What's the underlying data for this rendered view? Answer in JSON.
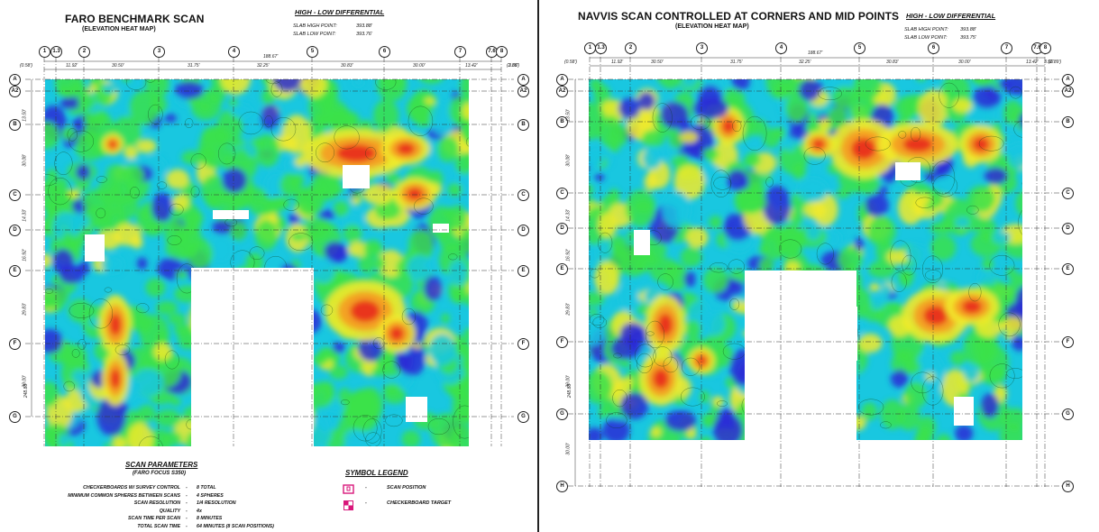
{
  "left": {
    "title": "FARO BENCHMARK SCAN",
    "subtitle": "(ELEVATION HEAT MAP)",
    "differential": {
      "heading": "HIGH - LOW DIFFERENTIAL",
      "high_label": "SLAB HIGH POINT:",
      "high_value": "393.88'",
      "low_label": "SLAB LOW POINT:",
      "low_value": "393.76'"
    },
    "grid_columns": [
      "1",
      "1.3",
      "2",
      "3",
      "4",
      "5",
      "6",
      "7",
      "7.6",
      "8"
    ],
    "grid_rows": [
      "A",
      "A2",
      "B",
      "C",
      "D",
      "E",
      "F",
      "G"
    ],
    "top_dims": [
      "(0.58')",
      "11.92'",
      "30.50'",
      "31.75'",
      "32.25'",
      "30.83'",
      "30.00'",
      "13.42'",
      "3.56'",
      "(2.89')"
    ],
    "overall_dim": "188.67'",
    "side_dims": [
      "13.50'",
      "30.08'",
      "14.33'",
      "16.92'",
      "29.83'",
      "30.00'",
      "248.83'"
    ],
    "scan_parameters": {
      "heading": "SCAN PARAMETERS",
      "subheading": "(FARO FOCUS S350)",
      "rows": [
        {
          "label": "CHECKERBOARDS W/ SURVEY CONTROL",
          "value": "8 TOTAL"
        },
        {
          "label": "MINIMUM COMMON SPHERES BETWEEN SCANS",
          "value": "4 SPHERES"
        },
        {
          "label": "SCAN RESOLUTION",
          "value": "1/4 RESOLUTION"
        },
        {
          "label": "QUALITY",
          "value": "4x"
        },
        {
          "label": "SCAN TIME PER SCAN",
          "value": "8 MINUTES"
        },
        {
          "label": "TOTAL SCAN TIME",
          "value": "64 MINUTES (8 SCAN POSITIONS)"
        }
      ]
    },
    "symbol_legend": {
      "heading": "SYMBOL LEGEND",
      "items": [
        {
          "icon": "scan-position-icon",
          "label": "SCAN POSITION"
        },
        {
          "icon": "checkerboard-target-icon",
          "label": "CHECKERBOARD TARGET"
        }
      ]
    }
  },
  "right": {
    "title": "NAVVIS SCAN CONTROLLED AT CORNERS AND MID POINTS",
    "subtitle": "(ELEVATION HEAT MAP)",
    "differential": {
      "heading": "HIGH - LOW DIFFERENTIAL",
      "high_label": "SLAB HIGH POINT:",
      "high_value": "393.88'",
      "low_label": "SLAB LOW POINT:",
      "low_value": "393.75'"
    },
    "grid_columns": [
      "1",
      "1.3",
      "2",
      "3",
      "4",
      "5",
      "6",
      "7",
      "7.6",
      "8"
    ],
    "grid_rows": [
      "A",
      "A2",
      "B",
      "C",
      "D",
      "E",
      "F",
      "G",
      "H"
    ],
    "top_dims": [
      "(0.58')",
      "11.92'",
      "30.50'",
      "31.75'",
      "32.25'",
      "30.83'",
      "30.00'",
      "13.42'",
      "3.56'",
      "(2.89')"
    ],
    "overall_dim": "188.67'",
    "side_dims": [
      "13.50'",
      "30.08'",
      "14.33'",
      "16.92'",
      "29.83'",
      "30.00'",
      "248.83'",
      "30.00'"
    ]
  },
  "colors": {
    "low": "#2b2bd6",
    "mid_low": "#19c7e0",
    "mid": "#3be24a",
    "mid_high": "#f2ea2a",
    "high": "#e83020",
    "legend_magenta": "#d8167a"
  }
}
